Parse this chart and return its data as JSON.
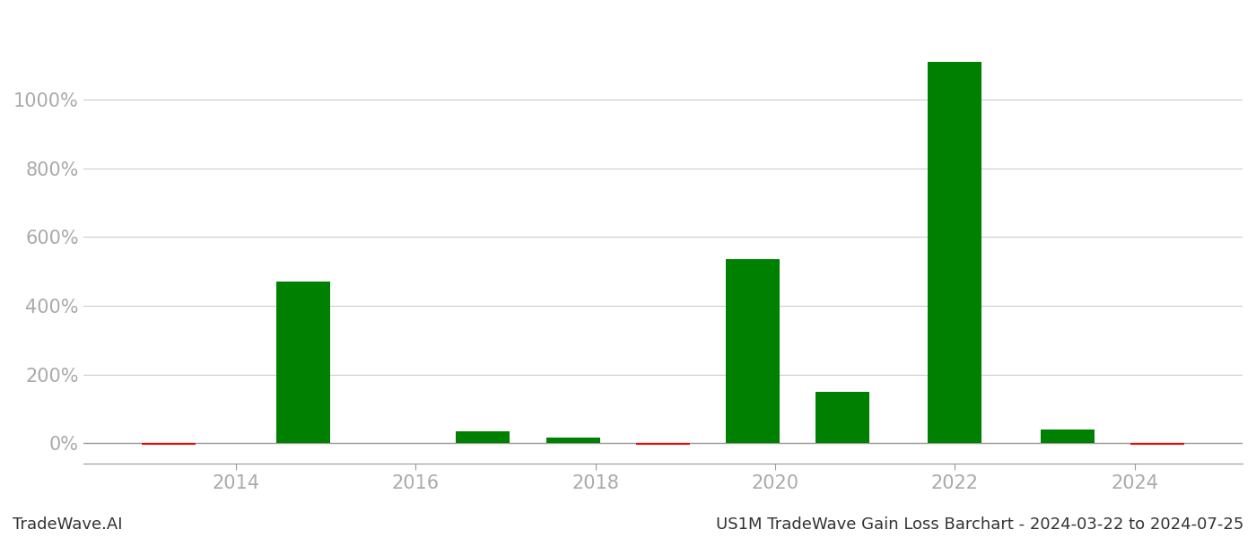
{
  "years": [
    2013.25,
    2014.75,
    2016.75,
    2017.75,
    2018.75,
    2019.75,
    2020.75,
    2022.0,
    2023.25,
    2024.25
  ],
  "values": [
    -5.0,
    470.0,
    35.0,
    15.0,
    -5.0,
    535.0,
    150.0,
    1110.0,
    40.0,
    -4.0
  ],
  "bar_colors": [
    "#ff0000",
    "#008000",
    "#008000",
    "#008000",
    "#ff0000",
    "#008000",
    "#008000",
    "#008000",
    "#008000",
    "#ff0000"
  ],
  "bar_width": 0.6,
  "xlim": [
    2012.3,
    2025.2
  ],
  "ylim": [
    -60,
    1250
  ],
  "ytick_values": [
    0,
    200,
    400,
    600,
    800,
    1000
  ],
  "xtick_values": [
    2014,
    2016,
    2018,
    2020,
    2022,
    2024
  ],
  "footer_left": "TradeWave.AI",
  "footer_right": "US1M TradeWave Gain Loss Barchart - 2024-03-22 to 2024-07-25",
  "background_color": "#ffffff",
  "grid_color": "#cccccc",
  "tick_label_color": "#aaaaaa",
  "footer_fontsize": 13,
  "tick_fontsize": 15
}
